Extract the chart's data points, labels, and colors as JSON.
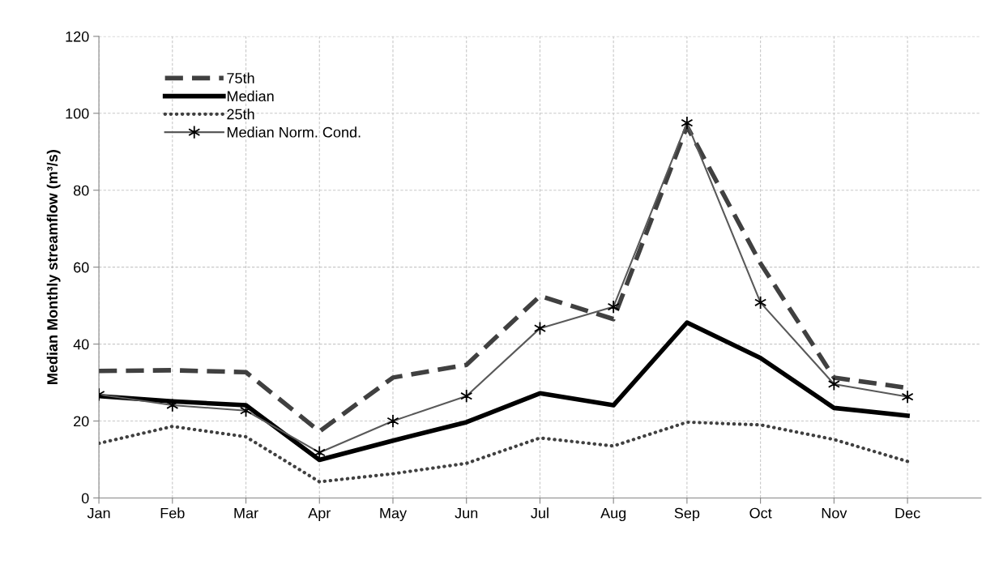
{
  "chart_data": {
    "type": "line",
    "ylabel": "Median Monthly streamflow (m³/s)",
    "categories": [
      "Jan",
      "Feb",
      "Mar",
      "Apr",
      "May",
      "Jun",
      "Jul",
      "Aug",
      "Sep",
      "Oct",
      "Nov",
      "Dec"
    ],
    "series": [
      {
        "name": "75th",
        "color": "#404040",
        "line_style": "dashed",
        "marker": "none",
        "values": [
          33.0,
          33.2,
          32.7,
          17.3,
          31.3,
          34.6,
          52.5,
          46.5,
          96.6,
          61.0,
          31.3,
          28.6
        ]
      },
      {
        "name": "Median",
        "color": "#000000",
        "line_style": "solid",
        "marker": "none",
        "values": [
          26.5,
          25.1,
          24.1,
          9.9,
          14.9,
          19.7,
          27.2,
          24.1,
          45.6,
          36.4,
          23.4,
          21.4
        ]
      },
      {
        "name": "25th",
        "color": "#404040",
        "line_style": "dotted",
        "marker": "none",
        "values": [
          14.2,
          18.6,
          15.9,
          4.2,
          6.3,
          9.0,
          15.6,
          13.5,
          19.7,
          19.0,
          15.2,
          9.5
        ]
      },
      {
        "name": "Median Norm. Cond.",
        "color": "#595959",
        "line_style": "solid",
        "marker": "cross",
        "values": [
          26.9,
          24.1,
          22.7,
          11.8,
          20.0,
          26.5,
          44.1,
          49.7,
          97.5,
          50.8,
          29.6,
          26.3
        ]
      }
    ],
    "ylim": [
      0,
      120
    ],
    "yticks": [
      0,
      20,
      40,
      60,
      80,
      100,
      120
    ],
    "grid": true,
    "legend": "top left"
  }
}
